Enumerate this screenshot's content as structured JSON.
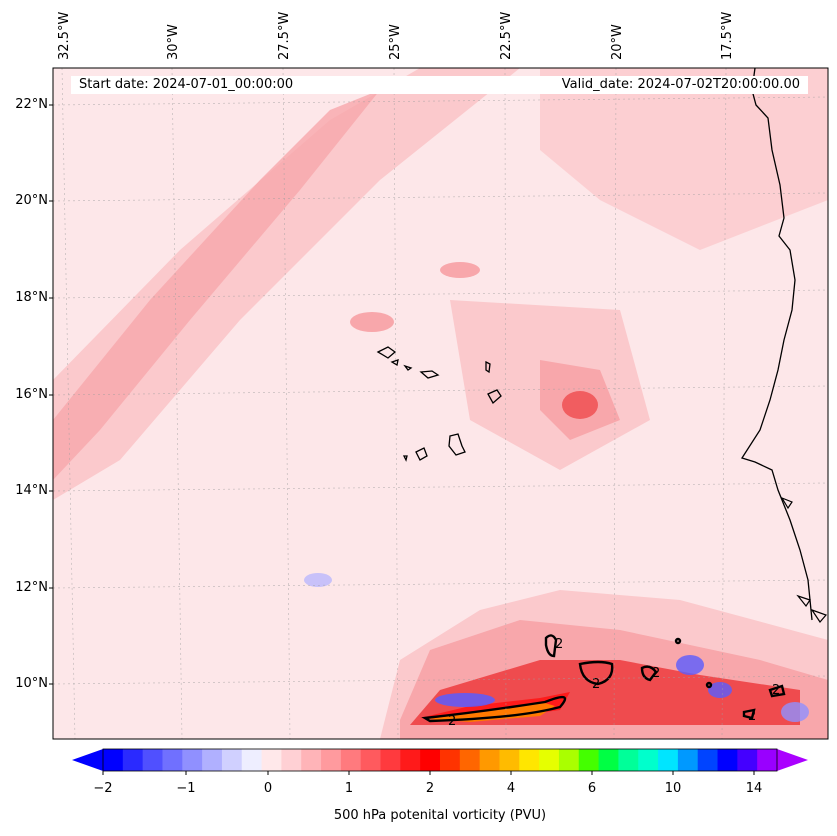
{
  "map": {
    "start_date": "Start date: 2024-07-01_00:00:00",
    "valid_date": "Valid_date: 2024-07-02T20:00:00.00",
    "lon_labels": [
      "32.5°W",
      "30°W",
      "27.5°W",
      "25°W",
      "22.5°W",
      "20°W",
      "17.5°W"
    ],
    "lat_labels": [
      "22°N",
      "20°N",
      "18°N",
      "16°N",
      "14°N",
      "12°N",
      "10°N"
    ],
    "contour_value_label": "2",
    "contour_label_count": 7,
    "field": "500 hPa potenital vorticity (PVU)",
    "colors": {
      "background_pink": "#fde7e9",
      "light_pink": "#fbc9cc",
      "medium_pink": "#f8a7ab",
      "red": "#ef4b4e",
      "deep_red": "#fe1b1b",
      "orange": "#ff7a00",
      "blue": "#5a5cff",
      "coast": "#000000"
    }
  },
  "colorbar": {
    "label": "500 hPa potenital vorticity (PVU)",
    "ticks": [
      "−2",
      "−1",
      "0",
      "1",
      "2",
      "4",
      "6",
      "10",
      "14"
    ],
    "colors": [
      "#0000ff",
      "#2a2aff",
      "#5050ff",
      "#7070ff",
      "#9090ff",
      "#b0b0ff",
      "#d0d0ff",
      "#eeeeff",
      "#ffe8ea",
      "#ffd0d4",
      "#ffb4b8",
      "#ff9a9e",
      "#ff7a7e",
      "#ff5a5e",
      "#ff3a3e",
      "#ff1a1a",
      "#ff0000",
      "#ff3300",
      "#ff6600",
      "#ff9900",
      "#ffbb00",
      "#ffe600",
      "#e6ff00",
      "#aaff00",
      "#44ff00",
      "#00ff44",
      "#00ff99",
      "#00ffcc",
      "#00e5ff",
      "#0099ff",
      "#0044ff",
      "#0000ff",
      "#4400ff",
      "#9900ff"
    ]
  }
}
